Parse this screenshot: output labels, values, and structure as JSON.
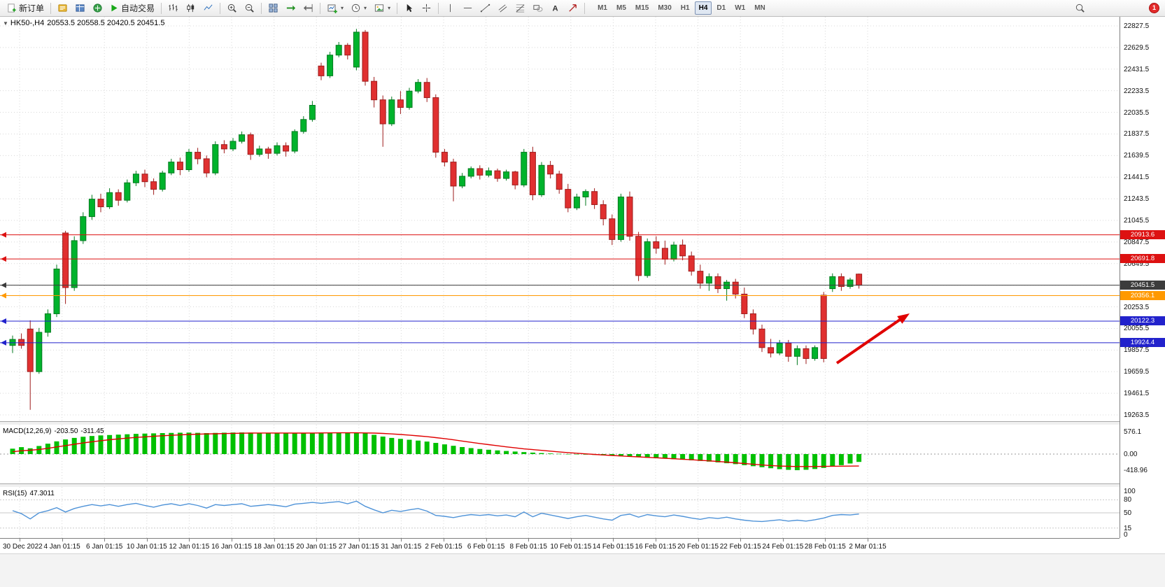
{
  "titlebar": {
    "badge_count": "1"
  },
  "toolbar": {
    "new_order_label": "新订单",
    "auto_trading_label": "自动交易",
    "timeframes": [
      "M1",
      "M5",
      "M15",
      "M30",
      "H1",
      "H4",
      "D1",
      "W1",
      "MN"
    ],
    "active_timeframe": "H4"
  },
  "chart_header": {
    "symbol": "HK50-,H4",
    "ohlc": "20553.5 20558.5 20420.5 20451.5"
  },
  "colors": {
    "up": "#00b32c",
    "up_stroke": "#007a1e",
    "down": "#e03030",
    "down_stroke": "#9e1c1c",
    "macd_hist": "#00c000",
    "macd_signal": "#e00000",
    "rsi_line": "#4f93d8",
    "grid": "#d8d8d8",
    "arrow": "#e00000"
  },
  "chart_data": {
    "type": "candlestick",
    "symbol": "HK50-",
    "period": "H4",
    "ylim": [
      19263.5,
      22827.5
    ],
    "price_ticks": [
      "22827.5",
      "22629.5",
      "22431.5",
      "22233.5",
      "22035.5",
      "21837.5",
      "21639.5",
      "21441.5",
      "21243.5",
      "21045.5",
      "20847.5",
      "20649.5",
      "20451.5",
      "20253.5",
      "20055.5",
      "19857.5",
      "19659.5",
      "19461.5",
      "19263.5"
    ],
    "time_labels": [
      "30 Dec 2022",
      "4 Jan 01:15",
      "6 Jan 01:15",
      "10 Jan 01:15",
      "12 Jan 01:15",
      "16 Jan 01:15",
      "18 Jan 01:15",
      "20 Jan 01:15",
      "27 Jan 01:15",
      "31 Jan 01:15",
      "2 Feb 01:15",
      "6 Feb 01:15",
      "8 Feb 01:15",
      "10 Feb 01:15",
      "14 Feb 01:15",
      "16 Feb 01:15",
      "20 Feb 01:15",
      "22 Feb 01:15",
      "24 Feb 01:15",
      "28 Feb 01:15",
      "2 Mar 01:15"
    ],
    "candles": [
      [
        19900,
        19990,
        19830,
        19955
      ],
      [
        19955,
        20010,
        19870,
        19900
      ],
      [
        20050,
        20130,
        19310,
        19660
      ],
      [
        19660,
        20060,
        19640,
        20020
      ],
      [
        20020,
        20230,
        19980,
        20190
      ],
      [
        20190,
        20640,
        20160,
        20600
      ],
      [
        20930,
        20950,
        20280,
        20430
      ],
      [
        20430,
        20900,
        20400,
        20860
      ],
      [
        20860,
        21120,
        20830,
        21080
      ],
      [
        21080,
        21280,
        21050,
        21240
      ],
      [
        21240,
        21290,
        21120,
        21170
      ],
      [
        21170,
        21340,
        21150,
        21300
      ],
      [
        21300,
        21330,
        21180,
        21230
      ],
      [
        21230,
        21420,
        21210,
        21390
      ],
      [
        21390,
        21500,
        21360,
        21470
      ],
      [
        21470,
        21510,
        21350,
        21400
      ],
      [
        21400,
        21430,
        21280,
        21330
      ],
      [
        21330,
        21500,
        21310,
        21480
      ],
      [
        21480,
        21610,
        21460,
        21580
      ],
      [
        21580,
        21620,
        21460,
        21510
      ],
      [
        21510,
        21700,
        21490,
        21670
      ],
      [
        21670,
        21710,
        21560,
        21610
      ],
      [
        21610,
        21640,
        21440,
        21480
      ],
      [
        21480,
        21770,
        21460,
        21740
      ],
      [
        21740,
        21780,
        21660,
        21700
      ],
      [
        21700,
        21800,
        21680,
        21770
      ],
      [
        21770,
        21860,
        21750,
        21830
      ],
      [
        21830,
        21850,
        21600,
        21650
      ],
      [
        21650,
        21730,
        21630,
        21700
      ],
      [
        21700,
        21720,
        21610,
        21660
      ],
      [
        21660,
        21760,
        21640,
        21730
      ],
      [
        21730,
        21760,
        21630,
        21680
      ],
      [
        21680,
        21880,
        21660,
        21860
      ],
      [
        21860,
        22000,
        21840,
        21970
      ],
      [
        21970,
        22140,
        21950,
        22100
      ],
      [
        22460,
        22490,
        22330,
        22370
      ],
      [
        22370,
        22590,
        22350,
        22560
      ],
      [
        22560,
        22680,
        22540,
        22650
      ],
      [
        22650,
        22670,
        22520,
        22560
      ],
      [
        22450,
        22800,
        22420,
        22770
      ],
      [
        22770,
        22790,
        22280,
        22320
      ],
      [
        22320,
        22360,
        22080,
        22150
      ],
      [
        22150,
        22190,
        21720,
        21930
      ],
      [
        21930,
        22180,
        21910,
        22150
      ],
      [
        22150,
        22230,
        22020,
        22080
      ],
      [
        22080,
        22260,
        22060,
        22230
      ],
      [
        22230,
        22340,
        22210,
        22310
      ],
      [
        22310,
        22350,
        22130,
        22170
      ],
      [
        22170,
        22200,
        21620,
        21670
      ],
      [
        21670,
        21700,
        21540,
        21580
      ],
      [
        21580,
        21610,
        21220,
        21360
      ],
      [
        21360,
        21480,
        21340,
        21450
      ],
      [
        21450,
        21540,
        21430,
        21520
      ],
      [
        21520,
        21550,
        21420,
        21460
      ],
      [
        21460,
        21530,
        21440,
        21500
      ],
      [
        21500,
        21520,
        21400,
        21430
      ],
      [
        21430,
        21510,
        21410,
        21490
      ],
      [
        21490,
        21500,
        21330,
        21370
      ],
      [
        21370,
        21700,
        21350,
        21670
      ],
      [
        21670,
        21720,
        21230,
        21280
      ],
      [
        21280,
        21580,
        21260,
        21550
      ],
      [
        21550,
        21590,
        21430,
        21470
      ],
      [
        21470,
        21500,
        21290,
        21330
      ],
      [
        21330,
        21380,
        21120,
        21160
      ],
      [
        21160,
        21290,
        21140,
        21260
      ],
      [
        21260,
        21330,
        21180,
        21310
      ],
      [
        21310,
        21340,
        21150,
        21190
      ],
      [
        21190,
        21230,
        21000,
        21060
      ],
      [
        21060,
        21100,
        20820,
        20870
      ],
      [
        20870,
        21290,
        20850,
        21260
      ],
      [
        21260,
        21310,
        20860,
        20900
      ],
      [
        20900,
        20940,
        20490,
        20540
      ],
      [
        20540,
        20880,
        20520,
        20850
      ],
      [
        20850,
        20900,
        20740,
        20790
      ],
      [
        20790,
        20860,
        20640,
        20690
      ],
      [
        20690,
        20850,
        20670,
        20820
      ],
      [
        20820,
        20870,
        20680,
        20720
      ],
      [
        20720,
        20760,
        20540,
        20580
      ],
      [
        20580,
        20640,
        20420,
        20470
      ],
      [
        20470,
        20560,
        20400,
        20530
      ],
      [
        20530,
        20560,
        20380,
        20420
      ],
      [
        20420,
        20500,
        20310,
        20480
      ],
      [
        20480,
        20510,
        20330,
        20370
      ],
      [
        20370,
        20430,
        20150,
        20190
      ],
      [
        20190,
        20230,
        20000,
        20050
      ],
      [
        20050,
        20090,
        19840,
        19880
      ],
      [
        19880,
        19960,
        19790,
        19830
      ],
      [
        19830,
        19950,
        19810,
        19920
      ],
      [
        19920,
        19950,
        19750,
        19800
      ],
      [
        19800,
        19900,
        19720,
        19870
      ],
      [
        19870,
        19900,
        19730,
        19780
      ],
      [
        19780,
        19900,
        19760,
        19880
      ],
      [
        20360,
        20390,
        19745,
        19780
      ],
      [
        20420,
        20560,
        20390,
        20530
      ],
      [
        20530,
        20560,
        20400,
        20440
      ],
      [
        20440,
        20520,
        20420,
        20500
      ],
      [
        20553.5,
        20558.5,
        20420.5,
        20451.5
      ]
    ],
    "levels": [
      {
        "price": 20913.6,
        "label": "20913.6",
        "color": "#dd1111"
      },
      {
        "price": 20691.8,
        "label": "20691.8",
        "color": "#dd1111"
      },
      {
        "price": 20451.5,
        "label": "20451.5",
        "color": "#3c3c3c",
        "current": true
      },
      {
        "price": 20356.1,
        "label": "20356.1",
        "color": "#ff9900"
      },
      {
        "price": 20122.3,
        "label": "20122.3",
        "color": "#2222cc"
      },
      {
        "price": 19924.4,
        "label": "19924.4",
        "color": "#2222cc"
      }
    ],
    "annotations": [
      {
        "type": "trend-arrow",
        "color": "#e00000"
      }
    ],
    "indicators": {
      "macd": {
        "name": "MACD(12,26,9)",
        "value": "-203.50",
        "signal_value": "-311.45",
        "axis_ticks": [
          "576.1",
          "0.00",
          "-418.96"
        ],
        "ylim": [
          -418.96,
          576.1
        ],
        "histogram": [
          140,
          180,
          150,
          210,
          270,
          330,
          380,
          420,
          450,
          470,
          485,
          495,
          505,
          515,
          525,
          532,
          538,
          545,
          550,
          555,
          558,
          552,
          545,
          550,
          556,
          560,
          562,
          558,
          552,
          548,
          543,
          538,
          542,
          548,
          554,
          558,
          560,
          556,
          548,
          552,
          540,
          500,
          455,
          420,
          395,
          372,
          350,
          325,
          290,
          252,
          215,
          182,
          155,
          132,
          112,
          95,
          80,
          66,
          52,
          38,
          26,
          15,
          6,
          -2,
          -8,
          -14,
          -22,
          -32,
          -45,
          -58,
          -70,
          -82,
          -95,
          -108,
          -120,
          -133,
          -147,
          -162,
          -178,
          -196,
          -216,
          -238,
          -262,
          -288,
          -315,
          -342,
          -368,
          -392,
          -410,
          -419,
          -408,
          -388,
          -360,
          -325,
          -288,
          -245,
          -203.5
        ],
        "signal": [
          60,
          85,
          100,
          120,
          150,
          185,
          220,
          255,
          290,
          320,
          348,
          372,
          394,
          414,
          432,
          448,
          462,
          476,
          488,
          499,
          509,
          517,
          523,
          528,
          533,
          538,
          542,
          545,
          547,
          548,
          548,
          547,
          546,
          546,
          547,
          549,
          551,
          552,
          552,
          552,
          550,
          545,
          536,
          524,
          509,
          492,
          473,
          452,
          428,
          401,
          370,
          338,
          306,
          275,
          245,
          216,
          188,
          161,
          135,
          117,
          96,
          76,
          57,
          39,
          22,
          6,
          -9,
          -23,
          -36,
          -49,
          -61,
          -73,
          -85,
          -97,
          -109,
          -121,
          -134,
          -147,
          -161,
          -176,
          -192,
          -209,
          -227,
          -246,
          -265,
          -283,
          -299,
          -311,
          -319,
          -323,
          -324,
          -323,
          -320,
          -317,
          -314,
          -312,
          -311.45
        ]
      },
      "rsi": {
        "name": "RSI(15)",
        "value": "47.3011",
        "levels": [
          100,
          80,
          50,
          15,
          0
        ],
        "values": [
          55,
          48,
          36,
          50,
          55,
          62,
          52,
          60,
          65,
          69,
          66,
          69,
          65,
          69,
          72,
          67,
          63,
          68,
          71,
          67,
          71,
          67,
          61,
          69,
          67,
          69,
          71,
          65,
          67,
          69,
          67,
          64,
          70,
          72,
          74,
          72,
          74,
          76,
          71,
          77,
          65,
          57,
          50,
          56,
          53,
          57,
          60,
          54,
          44,
          42,
          39,
          43,
          46,
          44,
          46,
          43,
          45,
          41,
          52,
          41,
          49,
          45,
          41,
          37,
          41,
          44,
          40,
          36,
          33,
          44,
          47,
          40,
          46,
          43,
          41,
          45,
          42,
          38,
          35,
          39,
          37,
          40,
          36,
          33,
          31,
          30,
          32,
          34,
          31,
          33,
          31,
          34,
          38,
          44,
          46,
          45,
          47.3
        ]
      }
    }
  }
}
